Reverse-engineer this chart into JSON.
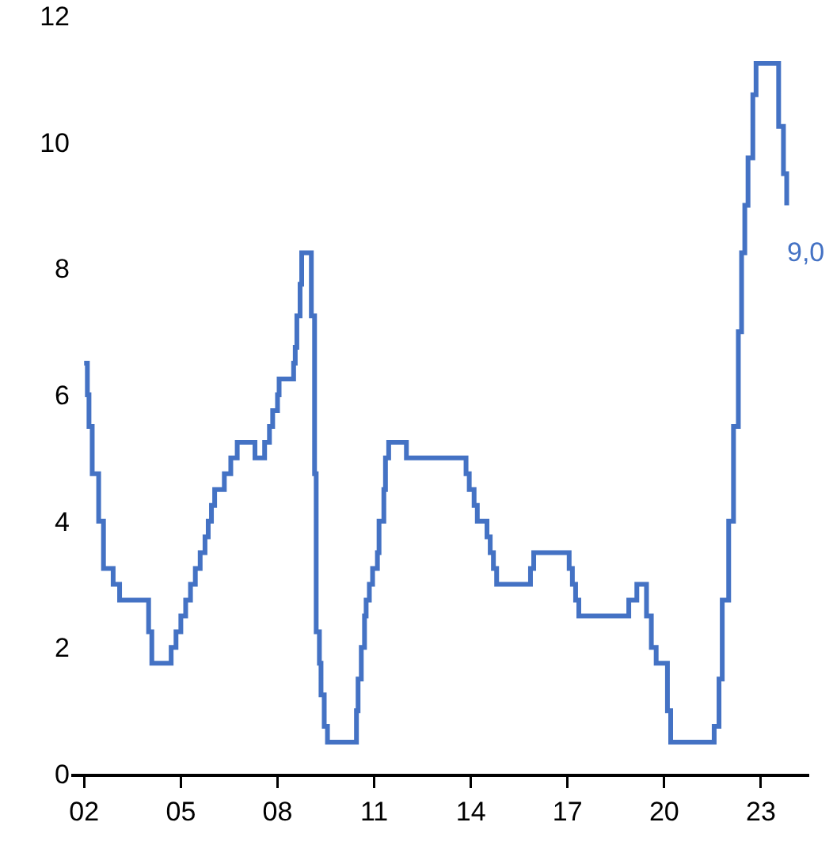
{
  "chart_data": {
    "type": "step",
    "color": "#4472c4",
    "x": [
      2002.0,
      2002.1,
      2002.15,
      2002.25,
      2002.45,
      2002.6,
      2002.9,
      2003.1,
      2004.0,
      2004.1,
      2004.7,
      2004.85,
      2005.0,
      2005.15,
      2005.3,
      2005.45,
      2005.6,
      2005.75,
      2005.85,
      2005.95,
      2006.05,
      2006.35,
      2006.55,
      2006.75,
      2007.3,
      2007.6,
      2007.75,
      2007.85,
      2008.0,
      2008.05,
      2008.5,
      2008.55,
      2008.6,
      2008.7,
      2008.75,
      2009.05,
      2009.15,
      2009.2,
      2009.3,
      2009.35,
      2009.45,
      2009.55,
      2010.45,
      2010.5,
      2010.6,
      2010.7,
      2010.75,
      2010.85,
      2010.95,
      2011.1,
      2011.15,
      2011.3,
      2011.35,
      2011.45,
      2012.0,
      2013.85,
      2013.95,
      2014.1,
      2014.2,
      2014.5,
      2014.6,
      2014.7,
      2014.8,
      2015.85,
      2015.95,
      2017.05,
      2017.15,
      2017.25,
      2017.35,
      2018.9,
      2019.15,
      2019.45,
      2019.6,
      2019.75,
      2020.1,
      2020.2,
      2021.55,
      2021.7,
      2021.8,
      2022.0,
      2022.15,
      2022.3,
      2022.4,
      2022.5,
      2022.6,
      2022.75,
      2022.85,
      2023.55,
      2023.7,
      2023.8
    ],
    "values": [
      6.5,
      6.0,
      5.5,
      4.75,
      4.0,
      3.25,
      3.0,
      2.75,
      2.25,
      1.75,
      2.0,
      2.25,
      2.5,
      2.75,
      3.0,
      3.25,
      3.5,
      3.75,
      4.0,
      4.25,
      4.5,
      4.75,
      5.0,
      5.25,
      5.0,
      5.25,
      5.5,
      5.75,
      6.0,
      6.25,
      6.5,
      6.75,
      7.25,
      7.75,
      8.25,
      7.25,
      4.75,
      2.25,
      1.75,
      1.25,
      0.75,
      0.5,
      1.0,
      1.5,
      2.0,
      2.5,
      2.75,
      3.0,
      3.25,
      3.5,
      4.0,
      4.5,
      5.0,
      5.25,
      5.0,
      4.75,
      4.5,
      4.25,
      4.0,
      3.75,
      3.5,
      3.25,
      3.0,
      3.25,
      3.5,
      3.25,
      3.0,
      2.75,
      2.5,
      2.75,
      3.0,
      2.5,
      2.0,
      1.75,
      1.0,
      0.5,
      0.75,
      1.5,
      2.75,
      4.0,
      5.5,
      7.0,
      8.25,
      9.0,
      9.75,
      10.75,
      11.25,
      10.25,
      9.5,
      9.0
    ],
    "xlim": [
      2001.6,
      2024.5
    ],
    "xticks": [
      {
        "value": 2002,
        "label": "02"
      },
      {
        "value": 2005,
        "label": "05"
      },
      {
        "value": 2008,
        "label": "08"
      },
      {
        "value": 2011,
        "label": "11"
      },
      {
        "value": 2014,
        "label": "14"
      },
      {
        "value": 2017,
        "label": "17"
      },
      {
        "value": 2020,
        "label": "20"
      },
      {
        "value": 2023,
        "label": "23"
      }
    ],
    "ylim": [
      0,
      12
    ],
    "yticks": [
      0,
      2,
      4,
      6,
      8,
      10,
      12
    ],
    "annotations": [
      {
        "text": "9,0",
        "x": 2023.8,
        "y": 9
      }
    ]
  }
}
